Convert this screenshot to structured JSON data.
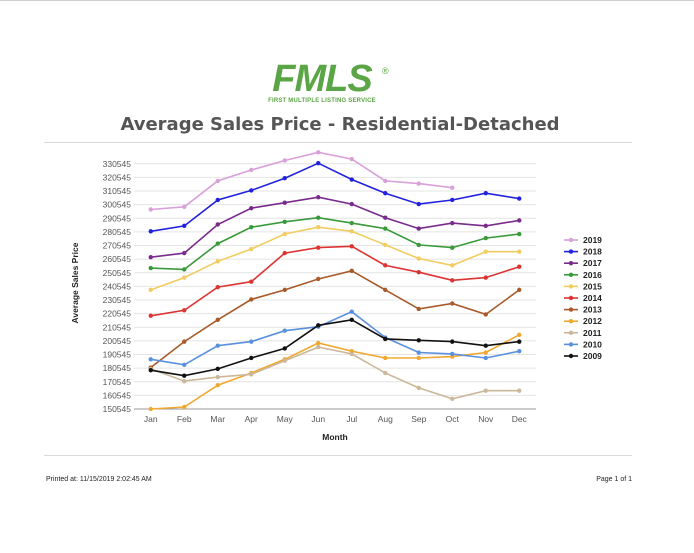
{
  "logo": {
    "brand": "FMLS",
    "registered": "®",
    "subtitle": "FIRST MULTIPLE LISTING SERVICE"
  },
  "title": "Average Sales Price - Residential-Detached",
  "footer": {
    "printed_label": "Printed at:",
    "printed_value": "11/15/2019 2:02:45 AM",
    "page_label": "Page 1 of 1"
  },
  "chart_data": {
    "type": "line",
    "title": "Average Sales Price - Residential-Detached",
    "xlabel": "Month",
    "ylabel": "Average Sales Price",
    "categories": [
      "Jan",
      "Feb",
      "Mar",
      "Apr",
      "May",
      "Jun",
      "Jul",
      "Aug",
      "Sep",
      "Oct",
      "Nov",
      "Dec"
    ],
    "yticks": [
      150545,
      160545,
      170545,
      180545,
      190545,
      200545,
      210545,
      220545,
      230545,
      240545,
      250545,
      260545,
      270545,
      280545,
      290545,
      300545,
      310545,
      320545,
      330545
    ],
    "ylim": [
      150545,
      335545
    ],
    "grid": true,
    "legend": "right",
    "series": [
      {
        "name": "2019",
        "color": "#d9a0d9",
        "values": [
          297000,
          299000,
          318000,
          326000,
          333000,
          339000,
          334000,
          318000,
          316000,
          313000,
          null,
          null
        ]
      },
      {
        "name": "2018",
        "color": "#2222dd",
        "values": [
          281000,
          285000,
          304000,
          311000,
          320000,
          331000,
          319000,
          309000,
          301000,
          304000,
          309000,
          305000
        ]
      },
      {
        "name": "2017",
        "color": "#7a2a8c",
        "values": [
          262000,
          265000,
          286000,
          298000,
          302000,
          306000,
          301000,
          291000,
          283000,
          287000,
          285000,
          289000
        ]
      },
      {
        "name": "2016",
        "color": "#3a9a3a",
        "values": [
          254000,
          253000,
          272000,
          284000,
          288000,
          291000,
          287000,
          283000,
          271000,
          269000,
          276000,
          279000
        ]
      },
      {
        "name": "2015",
        "color": "#f2cc60",
        "values": [
          238000,
          247000,
          259000,
          268000,
          279000,
          284000,
          281000,
          271000,
          261000,
          256000,
          266000,
          266000
        ]
      },
      {
        "name": "2014",
        "color": "#dd3333",
        "values": [
          219000,
          223000,
          240000,
          244000,
          265000,
          269000,
          270000,
          256000,
          251000,
          245000,
          247000,
          255000
        ]
      },
      {
        "name": "2013",
        "color": "#a85a2a",
        "values": [
          181000,
          200000,
          216000,
          231000,
          238000,
          246000,
          252000,
          238000,
          224000,
          228000,
          220000,
          238000
        ]
      },
      {
        "name": "2012",
        "color": "#f0a830",
        "values": [
          150545,
          152000,
          168000,
          177000,
          187000,
          199000,
          193000,
          188000,
          188000,
          189000,
          192000,
          205000
        ]
      },
      {
        "name": "2011",
        "color": "#cbb89a",
        "values": [
          180000,
          171000,
          174000,
          176000,
          186000,
          196000,
          191000,
          177000,
          166000,
          158000,
          164000,
          164000
        ]
      },
      {
        "name": "2010",
        "color": "#5a90dd",
        "values": [
          187000,
          183000,
          197000,
          200000,
          208000,
          211000,
          222000,
          203000,
          192000,
          191000,
          188000,
          193000
        ]
      },
      {
        "name": "2009",
        "color": "#111111",
        "values": [
          179000,
          175000,
          180000,
          188000,
          195000,
          212000,
          216000,
          202000,
          201000,
          200000,
          197000,
          200000
        ]
      }
    ]
  }
}
